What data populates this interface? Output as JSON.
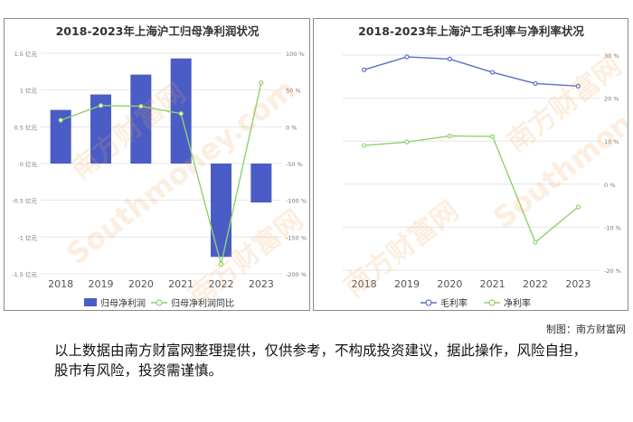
{
  "chart_data": [
    {
      "type": "bar",
      "title": "2018-2023年上海沪工归母净利润状况",
      "categories": [
        "2018",
        "2019",
        "2020",
        "2021",
        "2022",
        "2023"
      ],
      "series": [
        {
          "name": "归母净利润",
          "axis": "left",
          "unit": "亿元",
          "values": [
            0.73,
            0.94,
            1.21,
            1.43,
            -1.27,
            -0.53
          ]
        },
        {
          "name": "归母净利润同比",
          "axis": "right",
          "unit": "%",
          "type": "line",
          "values": [
            9,
            29,
            28,
            18,
            -187,
            60
          ]
        }
      ],
      "y_left": {
        "ticks": [
          "1.5 亿元",
          "1 亿元",
          "0.5 亿元",
          "0 亿元",
          "-0.5 亿元",
          "-1 亿元",
          "-1.5 亿元"
        ],
        "ylim": [
          -1.5,
          1.5
        ]
      },
      "y_right": {
        "ticks": [
          "100 %",
          "50 %",
          "0 %",
          "-50 %",
          "-100 %",
          "-150 %",
          "-200 %"
        ],
        "ylim": [
          -200,
          100
        ]
      },
      "colors": {
        "bar": "#4a5cc5",
        "line": "#8fd16e"
      },
      "grid": true,
      "legend": "bottom"
    },
    {
      "type": "line",
      "title": "2018-2023年上海沪工毛利率与净利率状况",
      "categories": [
        "2018",
        "2019",
        "2020",
        "2021",
        "2022",
        "2023"
      ],
      "series": [
        {
          "name": "毛利率",
          "values": [
            26.6,
            29.6,
            29.1,
            26.0,
            23.4,
            22.8
          ]
        },
        {
          "name": "净利率",
          "values": [
            9.0,
            9.8,
            11.2,
            11.1,
            -13.5,
            -5.3
          ]
        }
      ],
      "y_ticks": [
        "30 %",
        "20 %",
        "10 %",
        "0 %",
        "-10 %",
        "-20 %"
      ],
      "ylim": [
        -20,
        30
      ],
      "colors": {
        "gross": "#5b6fc4",
        "net": "#8fd16e"
      },
      "grid": true,
      "legend": "bottom"
    }
  ],
  "credit": "制图：南方财富网",
  "disclaimer": "以上数据由南方财富网整理提供，仅供参考，不构成投资建议，据此操作，风险自担，股市有风险，投资需谨慎。",
  "watermark": {
    "brand": "南方财富网",
    "site": "Southmoney.com"
  }
}
